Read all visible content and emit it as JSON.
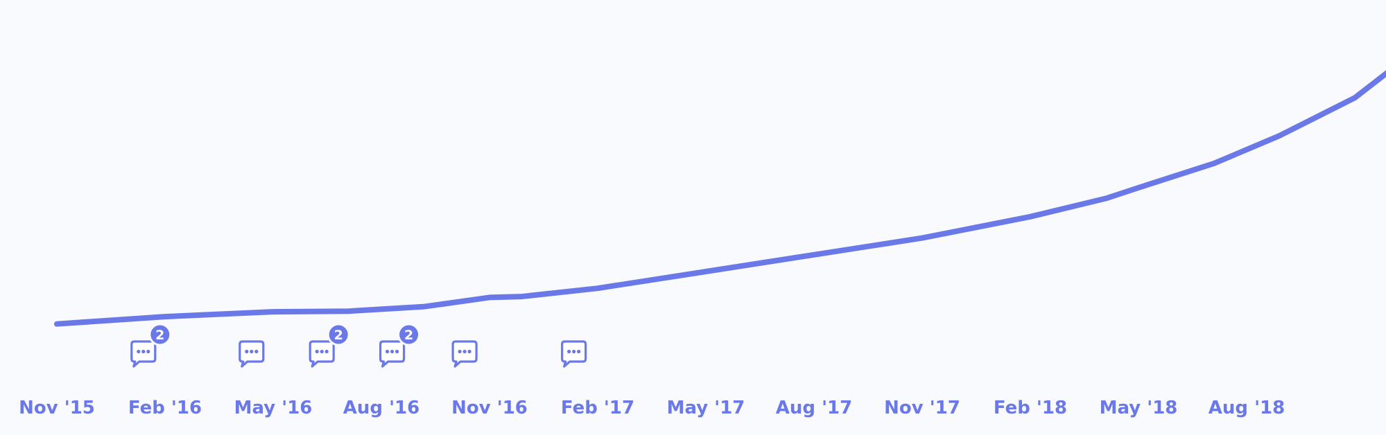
{
  "chart_data": {
    "type": "line",
    "x_ticks": [
      "Nov '15",
      "Feb '16",
      "May '16",
      "Aug '16",
      "Nov '16",
      "Feb '17",
      "May '17",
      "Aug '17",
      "Nov '17",
      "Feb '18",
      "May '18",
      "Aug '18"
    ],
    "series": [
      {
        "values": [
          {
            "x": 0.0,
            "y": 2.8
          },
          {
            "x": 1.0,
            "y": 5.2
          },
          {
            "x": 2.0,
            "y": 6.8
          },
          {
            "x": 2.7,
            "y": 7.0
          },
          {
            "x": 3.4,
            "y": 8.5
          },
          {
            "x": 4.0,
            "y": 11.5
          },
          {
            "x": 4.3,
            "y": 11.8
          },
          {
            "x": 5.0,
            "y": 14.5
          },
          {
            "x": 6.0,
            "y": 20.0
          },
          {
            "x": 7.0,
            "y": 25.5
          },
          {
            "x": 8.0,
            "y": 31.0
          },
          {
            "x": 9.0,
            "y": 38.0
          },
          {
            "x": 9.7,
            "y": 44.0
          },
          {
            "x": 10.0,
            "y": 47.5
          },
          {
            "x": 10.7,
            "y": 55.5
          },
          {
            "x": 11.3,
            "y": 64.5
          },
          {
            "x": 12.0,
            "y": 77.0
          },
          {
            "x": 12.4,
            "y": 88.0
          }
        ],
        "projection": [
          {
            "x": 12.4,
            "y": 88.0
          },
          {
            "x": 12.8,
            "y": 89.5
          }
        ]
      }
    ],
    "xlim": [
      0,
      12.8
    ],
    "ylim": [
      0,
      100
    ],
    "grid": false,
    "line_color": "#6b78e8",
    "comment_markers": [
      {
        "x": 0.8,
        "count": "2"
      },
      {
        "x": 1.8,
        "count": ""
      },
      {
        "x": 2.45,
        "count": "2"
      },
      {
        "x": 3.1,
        "count": "2"
      },
      {
        "x": 3.77,
        "count": ""
      },
      {
        "x": 4.78,
        "count": ""
      }
    ]
  }
}
